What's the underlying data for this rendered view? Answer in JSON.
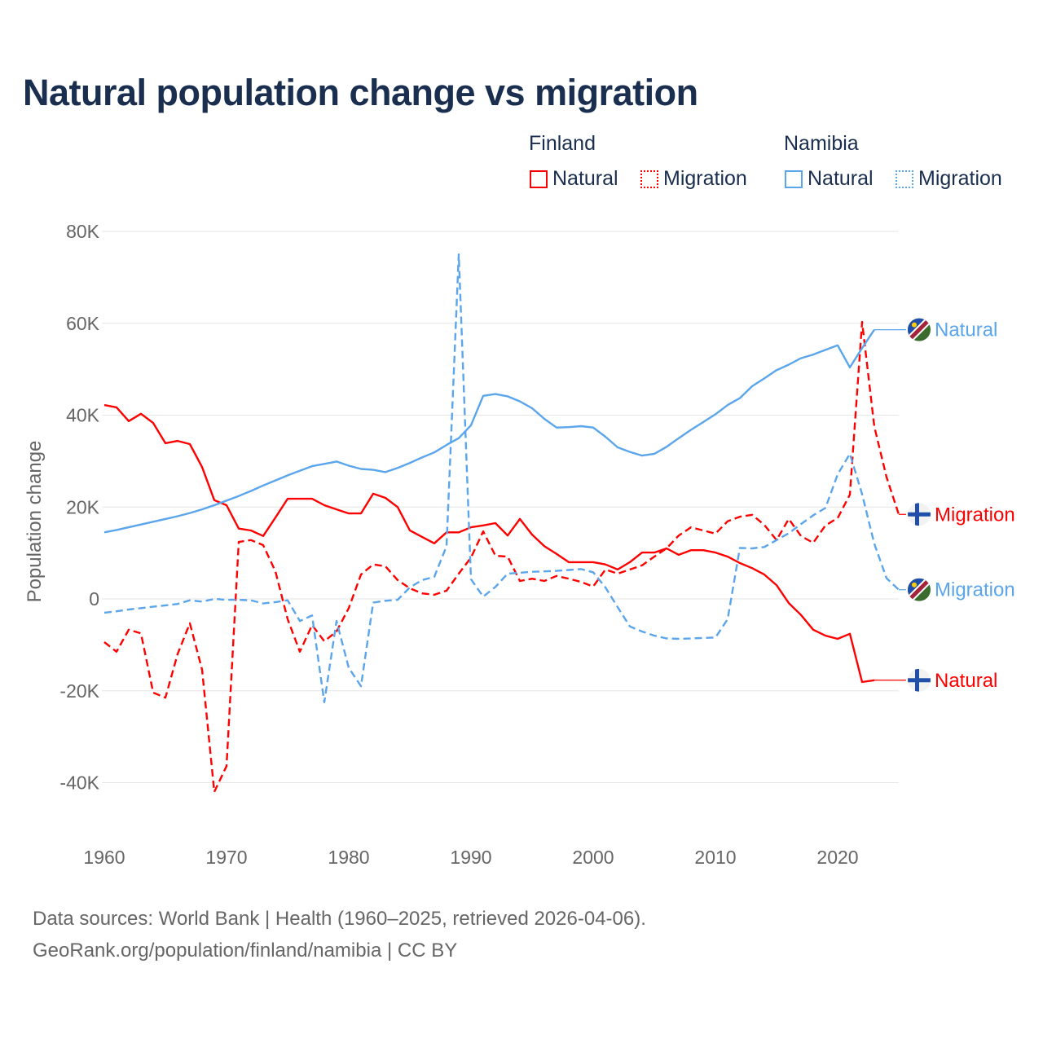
{
  "title": "Natural population change vs migration",
  "legend": {
    "groups": [
      {
        "name": "Finland",
        "color": "#ff0000",
        "items": [
          "Natural",
          "Migration"
        ]
      },
      {
        "name": "Namibia",
        "color": "#5aa5ec",
        "items": [
          "Natural",
          "Migration"
        ]
      }
    ]
  },
  "footer": {
    "line1": "Data sources: World Bank | Health (1960–2025, retrieved 2026-04-06).",
    "line2": "GeoRank.org/population/finland/namibia | CC BY"
  },
  "chart_data": {
    "type": "line",
    "title": "Natural population change vs migration",
    "xlabel": "",
    "ylabel": "Population change",
    "xlim": [
      1960,
      2025
    ],
    "ylim": [
      -50000,
      80000
    ],
    "x_ticks": [
      1960,
      1970,
      1980,
      1990,
      2000,
      2010,
      2020
    ],
    "y_ticks": [
      {
        "value": 80000,
        "label": "80K"
      },
      {
        "value": 60000,
        "label": "60K"
      },
      {
        "value": 40000,
        "label": "40K"
      },
      {
        "value": 20000,
        "label": "20K"
      },
      {
        "value": 0,
        "label": "0"
      },
      {
        "value": -20000,
        "label": "-20K"
      },
      {
        "value": -40000,
        "label": "-40K"
      }
    ],
    "grid": true,
    "series": [
      {
        "name": "Finland Natural",
        "end_label": "Natural",
        "country": "Finland",
        "color": "#ff0000",
        "dash": false,
        "start_year": 1960,
        "values": [
          42.2,
          41.7,
          38.7,
          40.3,
          38.3,
          33.9,
          34.4,
          33.7,
          28.7,
          21.5,
          20.4,
          15.3,
          14.9,
          13.7,
          17.7,
          21.8,
          21.8,
          21.8,
          20.4,
          19.5,
          18.6,
          18.6,
          22.9,
          22.0,
          20.0,
          14.9,
          13.5,
          12.1,
          14.5,
          14.5,
          15.6,
          16.0,
          16.5,
          13.8,
          17.4,
          14.0,
          11.5,
          9.8,
          8.0,
          8.0,
          8.0,
          7.5,
          6.4,
          8.0,
          10.1,
          10.1,
          11.0,
          9.6,
          10.6,
          10.6,
          10.1,
          9.2,
          7.8,
          6.7,
          5.3,
          3.0,
          -0.9,
          -3.5,
          -6.7,
          -8.0,
          -8.7,
          -7.6,
          -18.1,
          -17.7
        ]
      },
      {
        "name": "Finland Migration",
        "end_label": "Migration",
        "country": "Finland",
        "color": "#ff0000",
        "dash": true,
        "start_year": 1960,
        "values": [
          -9.4,
          -11.5,
          -6.7,
          -7.5,
          -20.4,
          -21.5,
          -12.0,
          -5.3,
          -15.4,
          -42.0,
          -36.4,
          12.4,
          12.8,
          11.7,
          6.0,
          -4.4,
          -11.5,
          -5.7,
          -9.2,
          -7.1,
          -2.0,
          5.3,
          7.5,
          7.1,
          4.1,
          2.3,
          1.2,
          0.9,
          1.8,
          5.5,
          9.0,
          14.7,
          9.4,
          9.2,
          3.9,
          4.4,
          3.9,
          5.0,
          4.4,
          3.7,
          2.7,
          6.4,
          5.5,
          6.4,
          7.3,
          9.2,
          11.0,
          13.8,
          15.6,
          14.9,
          14.2,
          16.9,
          17.9,
          18.3,
          16.1,
          12.8,
          17.4,
          13.7,
          12.2,
          16.0,
          17.6,
          22.7,
          60.3,
          37.5,
          26.5,
          18.4
        ]
      },
      {
        "name": "Namibia Natural",
        "end_label": "Natural",
        "country": "Namibia",
        "color": "#5aa5ec",
        "dash": false,
        "start_year": 1960,
        "values": [
          14.5,
          15.0,
          15.6,
          16.2,
          16.8,
          17.4,
          18.0,
          18.7,
          19.5,
          20.4,
          21.4,
          22.4,
          23.5,
          24.7,
          25.8,
          26.9,
          27.9,
          28.9,
          29.4,
          29.9,
          29.0,
          28.3,
          28.1,
          27.6,
          28.5,
          29.6,
          30.8,
          31.9,
          33.5,
          35.0,
          37.8,
          44.2,
          44.6,
          44.1,
          43.0,
          41.5,
          39.2,
          37.3,
          37.4,
          37.6,
          37.3,
          35.3,
          33.0,
          32.0,
          31.2,
          31.6,
          33.1,
          35.0,
          36.8,
          38.5,
          40.2,
          42.2,
          43.7,
          46.3,
          48.0,
          49.8,
          51.0,
          52.4,
          53.2,
          54.2,
          55.2,
          50.4,
          54.6,
          58.6
        ]
      },
      {
        "name": "Namibia Migration",
        "end_label": "Migration",
        "country": "Namibia",
        "color": "#5aa5ec",
        "dash": true,
        "start_year": 1960,
        "values": [
          -3.0,
          -2.7,
          -2.3,
          -2.0,
          -1.7,
          -1.4,
          -1.1,
          -0.3,
          -0.6,
          0.0,
          -0.2,
          -0.2,
          -0.3,
          -1.0,
          -0.7,
          -0.3,
          -4.8,
          -3.6,
          -22.5,
          -4.8,
          -15.0,
          -19.0,
          -0.8,
          -0.4,
          -0.2,
          2.5,
          4.1,
          4.8,
          11.5,
          75.0,
          4.3,
          0.5,
          2.6,
          5.5,
          5.7,
          5.9,
          6.0,
          6.1,
          6.3,
          6.5,
          5.8,
          2.5,
          -1.8,
          -6.0,
          -7.1,
          -8.0,
          -8.6,
          -8.7,
          -8.6,
          -8.5,
          -8.4,
          -4.4,
          11.1,
          11.0,
          11.3,
          12.8,
          14.3,
          16.3,
          18.2,
          19.8,
          27.1,
          31.6,
          22.8,
          12.0,
          4.5,
          2.0
        ]
      }
    ],
    "value_unit": "thousands"
  }
}
